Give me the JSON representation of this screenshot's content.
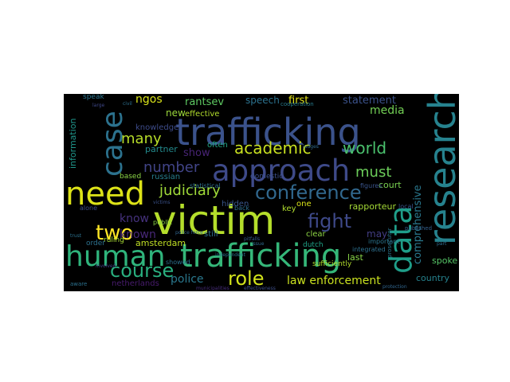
{
  "words": [
    {
      "id": "trafficking-top",
      "text": "trafficking",
      "color": "#3b528b"
    },
    {
      "id": "approach",
      "text": "approach",
      "color": "#3e4a89"
    },
    {
      "id": "need",
      "text": "need",
      "color": "#dde318"
    },
    {
      "id": "victim",
      "text": "victim",
      "color": "#b5de2b"
    },
    {
      "id": "human",
      "text": "human",
      "color": "#2fb47c"
    },
    {
      "id": "trafficking-mid",
      "text": "trafficking",
      "color": "#35b779"
    },
    {
      "id": "case",
      "text": "case",
      "color": "#2c728e"
    },
    {
      "id": "research",
      "text": "research",
      "color": "#26828e"
    },
    {
      "id": "data",
      "text": "data",
      "color": "#1f9e89"
    },
    {
      "id": "conference",
      "text": "conference",
      "color": "#31688e"
    },
    {
      "id": "two",
      "text": "two",
      "color": "#fde725"
    },
    {
      "id": "course",
      "text": "course",
      "color": "#29af7f"
    },
    {
      "id": "role",
      "text": "role",
      "color": "#d2e21b"
    },
    {
      "id": "fight",
      "text": "fight",
      "color": "#3e4989"
    },
    {
      "id": "world",
      "text": "world",
      "color": "#4ac16d"
    },
    {
      "id": "academic",
      "text": "academic",
      "color": "#c8e020"
    },
    {
      "id": "judiciary",
      "text": "judiciary",
      "color": "#a0da39"
    },
    {
      "id": "number",
      "text": "number",
      "color": "#414487"
    },
    {
      "id": "many",
      "text": "many",
      "color": "#b8de29"
    },
    {
      "id": "must",
      "text": "must",
      "color": "#6ccd5a"
    },
    {
      "id": "law-enforcement",
      "text": "law enforcement",
      "color": "#cae11f"
    },
    {
      "id": "police",
      "text": "police",
      "color": "#2a788e"
    },
    {
      "id": "known",
      "text": "known",
      "color": "#482878"
    },
    {
      "id": "know",
      "text": "know",
      "color": "#46327e"
    },
    {
      "id": "ngos",
      "text": "ngos",
      "color": "#d8e219"
    },
    {
      "id": "rantsev",
      "text": "rantsev",
      "color": "#5ec962"
    },
    {
      "id": "media",
      "text": "media",
      "color": "#73d055"
    },
    {
      "id": "statement",
      "text": "statement",
      "color": "#3b528b"
    },
    {
      "id": "first",
      "text": "first",
      "color": "#e5e419"
    },
    {
      "id": "speech",
      "text": "speech",
      "color": "#2c728e"
    },
    {
      "id": "show",
      "text": "show",
      "color": "#482475"
    },
    {
      "id": "new",
      "text": "new",
      "color": "#9bd93c"
    },
    {
      "id": "partner",
      "text": "partner",
      "color": "#238a8d"
    },
    {
      "id": "information",
      "text": "information",
      "color": "#1f968b"
    },
    {
      "id": "comprehensive",
      "text": "comprehensive",
      "color": "#2a788e"
    },
    {
      "id": "may",
      "text": "may",
      "color": "#433e85"
    },
    {
      "id": "rapporteur",
      "text": "rapporteur",
      "color": "#a5db36"
    },
    {
      "id": "court",
      "text": "court",
      "color": "#7ad151"
    },
    {
      "id": "country",
      "text": "country",
      "color": "#26828e"
    },
    {
      "id": "spoke",
      "text": "spoke",
      "color": "#56c667"
    },
    {
      "id": "last",
      "text": "last",
      "color": "#89d548"
    },
    {
      "id": "amsterdam",
      "text": "amsterdam",
      "color": "#c0df25"
    },
    {
      "id": "ruling",
      "text": "ruling",
      "color": "#a8db34"
    },
    {
      "id": "netherlands",
      "text": "netherlands",
      "color": "#481c6e"
    },
    {
      "id": "knowledge",
      "text": "knowledge",
      "color": "#3e4c8a"
    },
    {
      "id": "based",
      "text": "based",
      "color": "#8bd646"
    },
    {
      "id": "effective",
      "text": "effective",
      "color": "#b2dd2d"
    },
    {
      "id": "often",
      "text": "often",
      "color": "#22a785"
    },
    {
      "id": "russian",
      "text": "russian",
      "color": "#277f8e"
    },
    {
      "id": "hidden",
      "text": "hidden",
      "color": "#39568c"
    },
    {
      "id": "key",
      "text": "key",
      "color": "#b0dd2f"
    },
    {
      "id": "one",
      "text": "one",
      "color": "#dae319"
    },
    {
      "id": "clear",
      "text": "clear",
      "color": "#8ed645"
    },
    {
      "id": "domestic",
      "text": "domestic",
      "color": "#3c508b"
    },
    {
      "id": "still",
      "text": "still",
      "color": "#2e6f8e"
    },
    {
      "id": "dutch",
      "text": "dutch",
      "color": "#1fa287"
    },
    {
      "id": "speak",
      "text": "speak",
      "color": "#2b748e"
    },
    {
      "id": "order",
      "text": "order",
      "color": "#2d718e"
    },
    {
      "id": "alone",
      "text": "alone",
      "color": "#3d4d8a"
    },
    {
      "id": "back",
      "text": "back",
      "color": "#2e6e8e"
    },
    {
      "id": "integrated",
      "text": "integrated",
      "color": "#2d708e"
    },
    {
      "id": "cooperation",
      "text": "cooperation",
      "color": "#287c8e"
    },
    {
      "id": "important",
      "text": "important",
      "color": "#2b758e"
    },
    {
      "id": "published",
      "text": "published",
      "color": "#34608d"
    },
    {
      "id": "local",
      "text": "local",
      "color": "#39558c"
    },
    {
      "id": "sufficiently",
      "text": "sufficiently",
      "color": "#b2dd2d"
    },
    {
      "id": "public",
      "text": "public",
      "color": "#8bd646"
    },
    {
      "id": "figures",
      "text": "figures",
      "color": "#3a548c"
    },
    {
      "id": "statistical",
      "text": "statistical",
      "color": "#2e6d8e"
    },
    {
      "id": "showed",
      "text": "showed",
      "color": "#2d708e"
    },
    {
      "id": "effectiveness",
      "text": "effectiveness",
      "color": "#3d4e8a"
    },
    {
      "id": "municipalities",
      "text": "municipalities",
      "color": "#472d7b"
    },
    {
      "id": "prosecutor",
      "text": "prosecutor",
      "color": "#2a768e"
    },
    {
      "id": "aware",
      "text": "aware",
      "color": "#2c718e"
    },
    {
      "id": "involved",
      "text": "involved",
      "color": "#424086"
    },
    {
      "id": "civil",
      "text": "civil",
      "color": "#2d708e"
    },
    {
      "id": "large",
      "text": "large",
      "color": "#3f4889"
    },
    {
      "id": "issue",
      "text": "issue",
      "color": "#2f6b8e"
    },
    {
      "id": "trust",
      "text": "trust",
      "color": "#2c728e"
    },
    {
      "id": "part",
      "text": "part",
      "color": "#2f6c8e"
    },
    {
      "id": "victims",
      "text": "victims",
      "color": "#3b528b"
    },
    {
      "id": "police-force",
      "text": "police force",
      "color": "#32658e"
    },
    {
      "id": "independent",
      "text": "independent",
      "color": "#2b758e"
    },
    {
      "id": "protection",
      "text": "protection",
      "color": "#31668e"
    },
    {
      "id": "pitfalls",
      "text": "pitfalls",
      "color": "#365d8d"
    },
    {
      "id": "judges",
      "text": "judges",
      "color": "#2f6b8e"
    }
  ]
}
